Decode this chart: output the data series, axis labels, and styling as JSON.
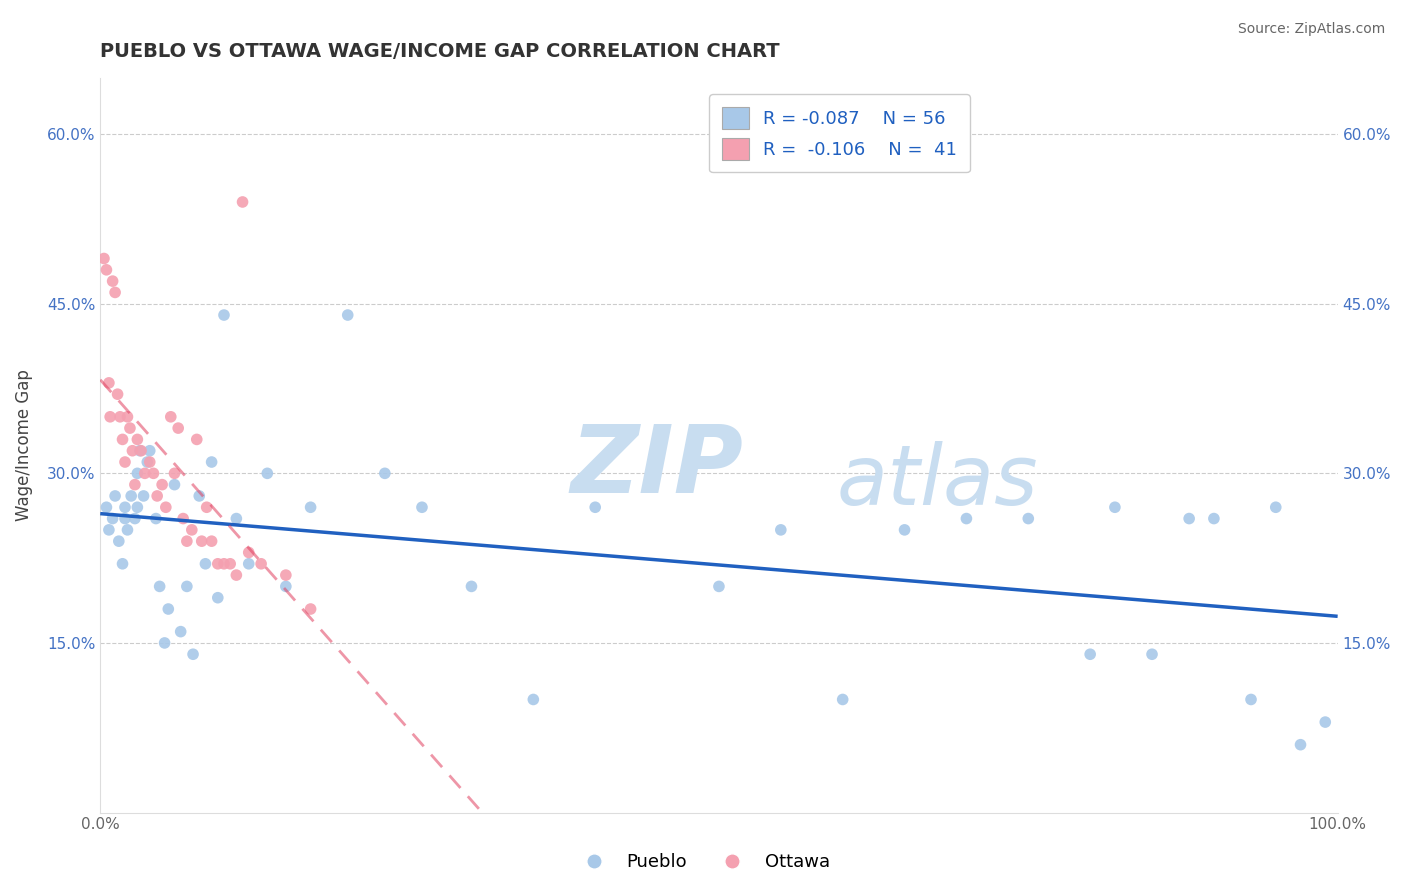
{
  "title": "PUEBLO VS OTTAWA WAGE/INCOME GAP CORRELATION CHART",
  "source": "Source: ZipAtlas.com",
  "ylabel": "Wage/Income Gap",
  "xlabel": "",
  "xlim": [
    0.0,
    1.0
  ],
  "ylim": [
    0.0,
    0.65
  ],
  "xticks": [
    0.0,
    0.2,
    0.4,
    0.6,
    0.8,
    1.0
  ],
  "xtick_labels": [
    "0.0%",
    "",
    "",
    "",
    "",
    "100.0%"
  ],
  "yticks": [
    0.15,
    0.3,
    0.45,
    0.6
  ],
  "ytick_labels": [
    "15.0%",
    "30.0%",
    "45.0%",
    "60.0%"
  ],
  "pueblo_color": "#a8c8e8",
  "ottawa_color": "#f4a0b0",
  "pueblo_line_color": "#2060c0",
  "ottawa_line_color": "#e04060",
  "pueblo_R": "-0.087",
  "pueblo_N": "56",
  "ottawa_R": "-0.106",
  "ottawa_N": "41",
  "watermark_zip": "ZIP",
  "watermark_atlas": "atlas",
  "pueblo_x": [
    0.005,
    0.007,
    0.01,
    0.012,
    0.015,
    0.018,
    0.02,
    0.02,
    0.022,
    0.025,
    0.028,
    0.03,
    0.03,
    0.032,
    0.035,
    0.038,
    0.04,
    0.045,
    0.048,
    0.052,
    0.055,
    0.06,
    0.065,
    0.07,
    0.075,
    0.08,
    0.085,
    0.09,
    0.095,
    0.1,
    0.11,
    0.12,
    0.135,
    0.15,
    0.17,
    0.2,
    0.23,
    0.26,
    0.3,
    0.35,
    0.4,
    0.5,
    0.55,
    0.6,
    0.65,
    0.7,
    0.75,
    0.8,
    0.82,
    0.85,
    0.88,
    0.9,
    0.93,
    0.95,
    0.97,
    0.99
  ],
  "pueblo_y": [
    0.27,
    0.25,
    0.26,
    0.28,
    0.24,
    0.22,
    0.27,
    0.26,
    0.25,
    0.28,
    0.26,
    0.3,
    0.27,
    0.32,
    0.28,
    0.31,
    0.32,
    0.26,
    0.2,
    0.15,
    0.18,
    0.29,
    0.16,
    0.2,
    0.14,
    0.28,
    0.22,
    0.31,
    0.19,
    0.44,
    0.26,
    0.22,
    0.3,
    0.2,
    0.27,
    0.44,
    0.3,
    0.27,
    0.2,
    0.1,
    0.27,
    0.2,
    0.25,
    0.1,
    0.25,
    0.26,
    0.26,
    0.14,
    0.27,
    0.14,
    0.26,
    0.26,
    0.1,
    0.27,
    0.06,
    0.08
  ],
  "ottawa_x": [
    0.003,
    0.005,
    0.007,
    0.008,
    0.01,
    0.012,
    0.014,
    0.016,
    0.018,
    0.02,
    0.022,
    0.024,
    0.026,
    0.028,
    0.03,
    0.033,
    0.036,
    0.04,
    0.043,
    0.046,
    0.05,
    0.053,
    0.057,
    0.06,
    0.063,
    0.067,
    0.07,
    0.074,
    0.078,
    0.082,
    0.086,
    0.09,
    0.095,
    0.1,
    0.105,
    0.11,
    0.115,
    0.12,
    0.13,
    0.15,
    0.17
  ],
  "ottawa_y": [
    0.49,
    0.48,
    0.38,
    0.35,
    0.47,
    0.46,
    0.37,
    0.35,
    0.33,
    0.31,
    0.35,
    0.34,
    0.32,
    0.29,
    0.33,
    0.32,
    0.3,
    0.31,
    0.3,
    0.28,
    0.29,
    0.27,
    0.35,
    0.3,
    0.34,
    0.26,
    0.24,
    0.25,
    0.33,
    0.24,
    0.27,
    0.24,
    0.22,
    0.22,
    0.22,
    0.21,
    0.54,
    0.23,
    0.22,
    0.21,
    0.18
  ]
}
